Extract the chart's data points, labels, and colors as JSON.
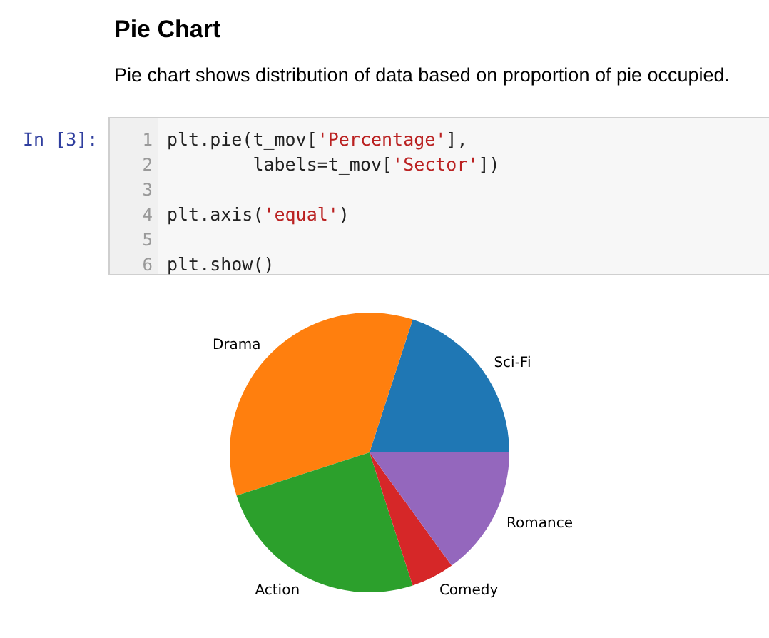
{
  "chart_data": {
    "type": "pie",
    "title": "Pie Chart",
    "subtitle": "Pie chart shows distribution of data based on proportion of pie occupied.",
    "annotations": [
      "In [3]:",
      "1",
      "plt.pie(t_mov['Percentage'],",
      "2",
      "        labels=t_mov['Sector'])",
      "3",
      "4",
      "plt.axis('equal')",
      "5",
      "6",
      "plt.show()"
    ],
    "categories": [
      "Sci-Fi",
      "Drama",
      "Action",
      "Comedy",
      "Romance"
    ],
    "values": [
      20,
      35,
      25,
      5,
      15
    ],
    "colors": [
      "#1f77b4",
      "#ff7f0e",
      "#2ca02c",
      "#d62728",
      "#9467bd"
    ]
  }
}
